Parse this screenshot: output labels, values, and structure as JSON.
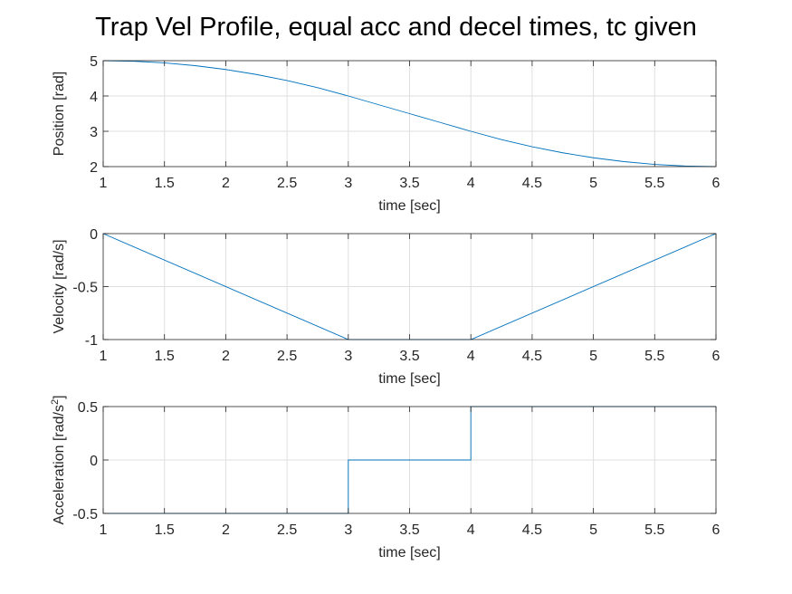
{
  "figure": {
    "title": "Trap Vel Profile, equal acc and decel times, tc given"
  },
  "chart_data": [
    {
      "type": "line",
      "xlabel": "time [sec]",
      "ylabel": "Position [rad]",
      "xlim": [
        1,
        6
      ],
      "ylim": [
        2,
        5
      ],
      "xticks": [
        1,
        1.5,
        2,
        2.5,
        3,
        3.5,
        4,
        4.5,
        5,
        5.5,
        6
      ],
      "yticks": [
        2,
        3,
        4,
        5
      ],
      "grid": true,
      "color": "#0072BD",
      "series": [
        {
          "x": [
            1,
            1.25,
            1.5,
            1.75,
            2,
            2.25,
            2.5,
            2.75,
            3,
            3.25,
            3.5,
            3.75,
            4,
            4.25,
            4.5,
            4.75,
            5,
            5.25,
            5.5,
            5.75,
            6
          ],
          "values": [
            5,
            4.984,
            4.938,
            4.859,
            4.75,
            4.609,
            4.438,
            4.234,
            4,
            3.75,
            3.5,
            3.25,
            3,
            2.766,
            2.563,
            2.391,
            2.25,
            2.141,
            2.063,
            2.016,
            2
          ]
        }
      ]
    },
    {
      "type": "line",
      "xlabel": "time [sec]",
      "ylabel": "Velocity [rad/s]",
      "xlim": [
        1,
        6
      ],
      "ylim": [
        -1,
        0
      ],
      "xticks": [
        1,
        1.5,
        2,
        2.5,
        3,
        3.5,
        4,
        4.5,
        5,
        5.5,
        6
      ],
      "yticks": [
        -1,
        -0.5,
        0
      ],
      "grid": true,
      "color": "#0072BD",
      "series": [
        {
          "x": [
            1,
            3,
            4,
            6
          ],
          "values": [
            0,
            -1,
            -1,
            0
          ]
        }
      ]
    },
    {
      "type": "line",
      "xlabel": "time [sec]",
      "ylabel": "Acceleration [rad/s",
      "ylabel_sup": "2",
      "ylabel_close": "]",
      "xlim": [
        1,
        6
      ],
      "ylim": [
        -0.5,
        0.5
      ],
      "xticks": [
        1,
        1.5,
        2,
        2.5,
        3,
        3.5,
        4,
        4.5,
        5,
        5.5,
        6
      ],
      "yticks": [
        -0.5,
        0,
        0.5
      ],
      "grid": true,
      "color": "#0072BD",
      "series": [
        {
          "x": [
            1,
            3,
            3,
            4,
            4,
            6
          ],
          "values": [
            -0.5,
            -0.5,
            0,
            0,
            0.5,
            0.5
          ]
        }
      ]
    }
  ]
}
